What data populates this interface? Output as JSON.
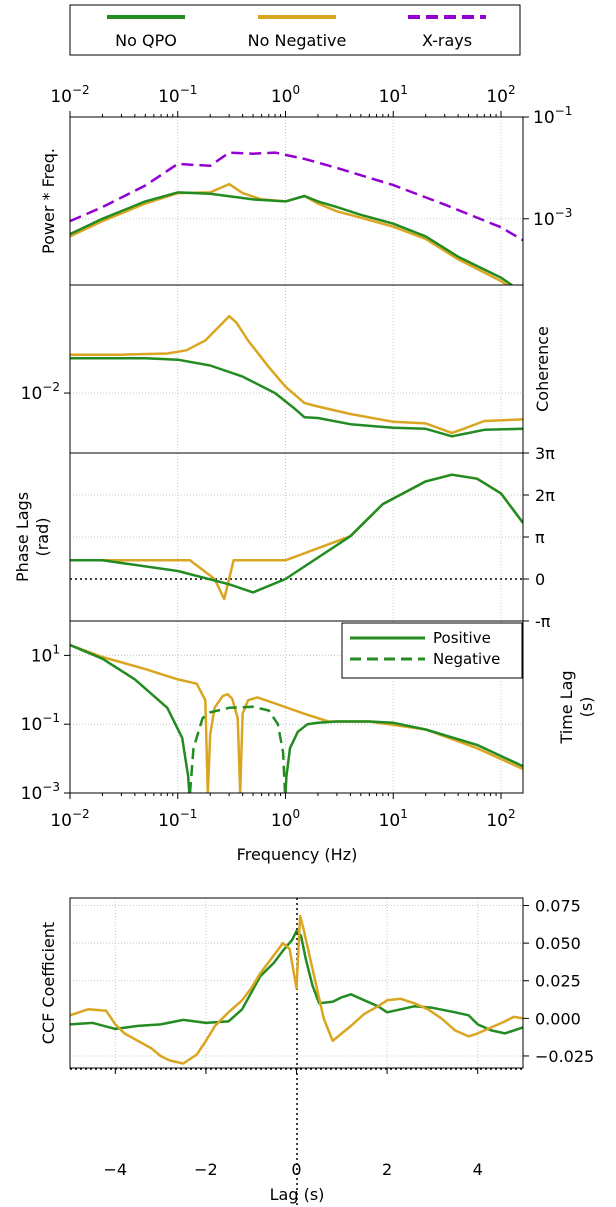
{
  "legend_top": [
    {
      "label": "No QPO",
      "color": "#228B22",
      "style": "solid"
    },
    {
      "label": "No Negative",
      "color": "#DAA520",
      "style": "solid"
    },
    {
      "label": "X-rays",
      "color": "#9400D3",
      "style": "dashed"
    }
  ],
  "legend_lag": [
    {
      "label": "Positive",
      "style": "solid"
    },
    {
      "label": "Negative",
      "style": "dashed"
    }
  ],
  "colors": {
    "green": "#228B22",
    "gold": "#DAA520",
    "purple": "#9400D3"
  },
  "chart_data": [
    {
      "type": "line",
      "panel": "power",
      "xscale": "log",
      "yscale": "log",
      "xlim": [
        0.01,
        160
      ],
      "ylim": [
        5e-05,
        0.1
      ],
      "ylabel": "Power * Freq.",
      "top_xticks": [
        "10^-2",
        "10^-1",
        "10^0",
        "10^1",
        "10^2"
      ],
      "yticks": [
        "10^-1",
        "10^-3"
      ],
      "series": [
        {
          "name": "X-rays",
          "x": [
            0.01,
            0.02,
            0.05,
            0.1,
            0.2,
            0.3,
            0.5,
            0.8,
            1.5,
            3,
            10,
            30,
            100,
            160
          ],
          "y": [
            0.0009,
            0.0017,
            0.0045,
            0.012,
            0.011,
            0.02,
            0.019,
            0.02,
            0.015,
            0.01,
            0.0046,
            0.0019,
            0.00068,
            0.00038
          ]
        },
        {
          "name": "No Negative",
          "x": [
            0.01,
            0.02,
            0.05,
            0.1,
            0.2,
            0.3,
            0.4,
            0.6,
            1,
            1.5,
            2,
            3,
            5,
            10,
            20,
            40,
            100,
            160
          ],
          "y": [
            0.00045,
            0.0009,
            0.002,
            0.0032,
            0.0033,
            0.0048,
            0.0032,
            0.0024,
            0.0022,
            0.0028,
            0.002,
            0.0014,
            0.00105,
            0.0007,
            0.0004,
            0.00016,
            6e-05,
            3e-05
          ]
        },
        {
          "name": "No QPO",
          "x": [
            0.01,
            0.02,
            0.05,
            0.1,
            0.2,
            0.5,
            1,
            1.5,
            2,
            3,
            5,
            10,
            20,
            40,
            100,
            160
          ],
          "y": [
            0.0005,
            0.001,
            0.0022,
            0.0033,
            0.0031,
            0.0024,
            0.0022,
            0.0028,
            0.0022,
            0.0017,
            0.0012,
            0.0008,
            0.00045,
            0.00018,
            7e-05,
            3.5e-05
          ]
        }
      ]
    },
    {
      "type": "line",
      "panel": "coherence",
      "xscale": "log",
      "yscale": "log",
      "xlim": [
        0.01,
        160
      ],
      "ylim": [
        0.0018,
        0.22
      ],
      "ylabel": "Coherence",
      "yticks": [
        "10^-2"
      ],
      "series": [
        {
          "name": "No Negative",
          "x": [
            0.01,
            0.03,
            0.08,
            0.12,
            0.18,
            0.25,
            0.3,
            0.35,
            0.45,
            0.7,
            1,
            1.5,
            2,
            4,
            10,
            20,
            35,
            45,
            70,
            160
          ],
          "y": [
            0.03,
            0.03,
            0.031,
            0.034,
            0.045,
            0.07,
            0.09,
            0.075,
            0.045,
            0.021,
            0.012,
            0.0075,
            0.0068,
            0.0055,
            0.0044,
            0.0042,
            0.0032,
            0.0036,
            0.0045,
            0.0047
          ]
        },
        {
          "name": "No QPO",
          "x": [
            0.01,
            0.05,
            0.1,
            0.2,
            0.4,
            0.8,
            1.2,
            1.5,
            2,
            4,
            10,
            20,
            35,
            45,
            70,
            160
          ],
          "y": [
            0.027,
            0.027,
            0.026,
            0.022,
            0.016,
            0.01,
            0.0065,
            0.005,
            0.0049,
            0.0041,
            0.0037,
            0.0036,
            0.0029,
            0.0031,
            0.0035,
            0.0036
          ]
        }
      ]
    },
    {
      "type": "line",
      "panel": "phase_lags",
      "xscale": "log",
      "yscale": "linear",
      "xlim": [
        0.01,
        160
      ],
      "ylim": [
        -3.14159,
        9.42478
      ],
      "ylabel": "Phase Lags (rad)",
      "yticks": [
        "3π",
        "2π",
        "π",
        "0",
        "-π"
      ],
      "series": [
        {
          "name": "No Negative",
          "x": [
            0.01,
            0.02,
            0.13,
            0.22,
            0.27,
            0.33,
            0.5,
            1,
            4,
            8,
            20,
            35,
            60,
            100,
            160
          ],
          "y": [
            1.4,
            1.4,
            1.4,
            0.0,
            -1.5,
            1.4,
            1.4,
            1.4,
            3.2,
            5.6,
            7.3,
            7.8,
            7.5,
            6.4,
            4.2
          ]
        },
        {
          "name": "No QPO",
          "x": [
            0.01,
            0.02,
            0.1,
            0.3,
            0.5,
            1,
            4,
            8,
            20,
            35,
            60,
            100,
            160
          ],
          "y": [
            1.4,
            1.4,
            0.6,
            -0.4,
            -1.0,
            0.0,
            3.2,
            5.6,
            7.3,
            7.8,
            7.5,
            6.4,
            4.2
          ]
        }
      ]
    },
    {
      "type": "line",
      "panel": "time_lag",
      "xscale": "log",
      "yscale": "log",
      "xlim": [
        0.01,
        160
      ],
      "ylim": [
        0.001,
        100
      ],
      "ylabel": "Time Lag (s)",
      "xlabel": "Frequency (Hz)",
      "xticks": [
        "10^-2",
        "10^-1",
        "10^0",
        "10^1",
        "10^2"
      ],
      "yticks": [
        "10^1",
        "10^-1",
        "10^-3"
      ],
      "series": [
        {
          "name": "No Negative",
          "style": "solid",
          "x": [
            0.01,
            0.02,
            0.05,
            0.1,
            0.15,
            0.18,
            0.19
          ],
          "y": [
            20,
            9,
            4,
            2,
            1.5,
            0.5,
            0.001
          ]
        },
        {
          "name": "No Negative",
          "style": "solid",
          "x": [
            0.19,
            0.2,
            0.22,
            0.26,
            0.29,
            0.32,
            0.36,
            0.38
          ],
          "y": [
            0.001,
            0.05,
            0.3,
            0.65,
            0.75,
            0.55,
            0.15,
            0.001
          ]
        },
        {
          "name": "No Negative",
          "style": "solid",
          "x": [
            0.38,
            0.4,
            0.45,
            0.55,
            0.8,
            1.5,
            2.5,
            6,
            20,
            60,
            160
          ],
          "y": [
            0.001,
            0.2,
            0.5,
            0.6,
            0.4,
            0.2,
            0.12,
            0.12,
            0.07,
            0.02,
            0.005
          ]
        },
        {
          "name": "Positive",
          "style": "solid",
          "x": [
            0.01,
            0.02,
            0.04,
            0.08,
            0.11,
            0.125,
            0.128
          ],
          "y": [
            20,
            8,
            2,
            0.3,
            0.04,
            0.003,
            0.001
          ]
        },
        {
          "name": "Negative",
          "style": "dashed",
          "x": [
            0.13,
            0.14,
            0.17,
            0.2,
            0.3,
            0.5,
            0.7,
            0.85,
            0.95,
            0.99
          ],
          "y": [
            0.001,
            0.02,
            0.15,
            0.22,
            0.3,
            0.32,
            0.25,
            0.1,
            0.015,
            0.001
          ]
        },
        {
          "name": "Positive",
          "style": "solid",
          "x": [
            1.0,
            1.02,
            1.1,
            1.3,
            1.6,
            2,
            3,
            6,
            10,
            20,
            60,
            160
          ],
          "y": [
            0.001,
            0.003,
            0.02,
            0.06,
            0.1,
            0.11,
            0.12,
            0.12,
            0.11,
            0.07,
            0.025,
            0.006
          ]
        }
      ]
    },
    {
      "type": "line",
      "panel": "ccf",
      "xscale": "linear",
      "yscale": "linear",
      "xlim": [
        -5,
        5
      ],
      "ylim": [
        -0.033,
        0.08
      ],
      "xlabel": "Lag (s)",
      "ylabel": "CCF Coefficient",
      "xticks": [
        "−4",
        "−2",
        "0",
        "2",
        "4"
      ],
      "yticks": [
        "0.075",
        "0.050",
        "0.025",
        "0.000",
        "−0.025"
      ],
      "series": [
        {
          "name": "No QPO",
          "x": [
            -5,
            -4.5,
            -4,
            -3.5,
            -3,
            -2.5,
            -2,
            -1.5,
            -1.2,
            -1.0,
            -0.8,
            -0.5,
            -0.3,
            -0.1,
            0,
            0.1,
            0.2,
            0.35,
            0.5,
            0.8,
            1.0,
            1.2,
            1.5,
            1.8,
            2.0,
            2.3,
            2.6,
            3.0,
            3.5,
            3.8,
            4.0,
            4.3,
            4.6,
            5.0
          ],
          "y": [
            -0.004,
            -0.003,
            -0.007,
            -0.005,
            -0.004,
            -0.001,
            -0.003,
            -0.002,
            0.006,
            0.017,
            0.028,
            0.037,
            0.045,
            0.052,
            0.058,
            0.055,
            0.04,
            0.022,
            0.01,
            0.011,
            0.014,
            0.016,
            0.012,
            0.008,
            0.004,
            0.006,
            0.008,
            0.007,
            0.004,
            0.002,
            -0.004,
            -0.008,
            -0.01,
            -0.006
          ]
        },
        {
          "name": "No Negative",
          "x": [
            -5,
            -4.6,
            -4.2,
            -4.0,
            -3.8,
            -3.5,
            -3.2,
            -3.0,
            -2.8,
            -2.5,
            -2.2,
            -2.0,
            -1.8,
            -1.5,
            -1.2,
            -1.0,
            -0.8,
            -0.5,
            -0.3,
            -0.15,
            0,
            0.08,
            0.15,
            0.3,
            0.45,
            0.6,
            0.8,
            1.0,
            1.2,
            1.5,
            1.8,
            2.0,
            2.3,
            2.6,
            2.9,
            3.2,
            3.5,
            3.8,
            4.0,
            4.3,
            4.6,
            4.8,
            5.0
          ],
          "y": [
            0.002,
            0.006,
            0.005,
            -0.004,
            -0.01,
            -0.015,
            -0.02,
            -0.025,
            -0.028,
            -0.03,
            -0.024,
            -0.015,
            -0.005,
            0.004,
            0.012,
            0.02,
            0.03,
            0.042,
            0.05,
            0.046,
            0.02,
            0.068,
            0.06,
            0.04,
            0.02,
            0.0,
            -0.015,
            -0.01,
            -0.005,
            0.003,
            0.008,
            0.012,
            0.013,
            0.01,
            0.006,
            0.0,
            -0.008,
            -0.012,
            -0.01,
            -0.006,
            -0.002,
            0.001,
            0.0
          ]
        }
      ]
    }
  ]
}
